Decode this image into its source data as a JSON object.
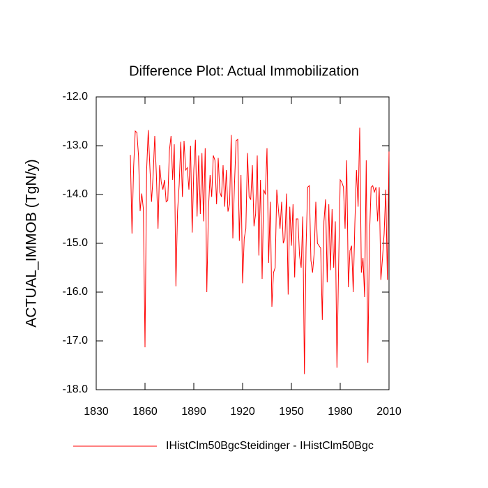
{
  "chart_data": {
    "type": "line",
    "title": "Difference Plot: Actual Immobilization",
    "y_label": "ACTUAL_IMMOB  (TgN/y)",
    "x": [
      1851,
      1852,
      1853,
      1854,
      1855,
      1856,
      1857,
      1858,
      1859,
      1860,
      1861,
      1862,
      1863,
      1864,
      1865,
      1866,
      1867,
      1868,
      1869,
      1870,
      1871,
      1872,
      1873,
      1874,
      1875,
      1876,
      1877,
      1878,
      1879,
      1880,
      1881,
      1882,
      1883,
      1884,
      1885,
      1886,
      1887,
      1888,
      1889,
      1890,
      1891,
      1892,
      1893,
      1894,
      1895,
      1896,
      1897,
      1898,
      1899,
      1900,
      1901,
      1902,
      1903,
      1904,
      1905,
      1906,
      1907,
      1908,
      1909,
      1910,
      1911,
      1912,
      1913,
      1914,
      1915,
      1916,
      1917,
      1918,
      1919,
      1920,
      1921,
      1922,
      1923,
      1924,
      1925,
      1926,
      1927,
      1928,
      1929,
      1930,
      1931,
      1932,
      1933,
      1934,
      1935,
      1936,
      1937,
      1938,
      1939,
      1940,
      1941,
      1942,
      1943,
      1944,
      1945,
      1946,
      1947,
      1948,
      1949,
      1950,
      1951,
      1952,
      1953,
      1954,
      1955,
      1956,
      1957,
      1958,
      1959,
      1960,
      1961,
      1962,
      1963,
      1964,
      1965,
      1966,
      1967,
      1968,
      1969,
      1970,
      1971,
      1972,
      1973,
      1974,
      1975,
      1976,
      1977,
      1978,
      1979,
      1980,
      1981,
      1982,
      1983,
      1984,
      1985,
      1986,
      1987,
      1988,
      1989,
      1990,
      1991,
      1992,
      1993,
      1994,
      1995,
      1996,
      1997,
      1998,
      1999,
      2000,
      2001,
      2002,
      2003,
      2004,
      2005,
      2006,
      2007,
      2008,
      2009,
      2010
    ],
    "series": [
      {
        "name": "IHistClm50BgcSteidinger - IHistClm50Bgc",
        "color": "#ff0000",
        "values": [
          -13.19,
          -14.8,
          -13.44,
          -12.7,
          -12.73,
          -13.2,
          -14.34,
          -13.98,
          -14.3,
          -17.13,
          -13.5,
          -12.68,
          -13.45,
          -14.15,
          -13.6,
          -12.8,
          -13.6,
          -14.7,
          -13.4,
          -13.75,
          -13.9,
          -13.7,
          -14.15,
          -14.12,
          -13.1,
          -12.8,
          -13.7,
          -12.97,
          -15.88,
          -14.35,
          -13.8,
          -12.92,
          -14.05,
          -12.9,
          -13.5,
          -13.45,
          -13.9,
          -13.0,
          -14.78,
          -13.5,
          -12.88,
          -14.45,
          -13.2,
          -14.4,
          -13.15,
          -14.55,
          -13.05,
          -16.0,
          -14.3,
          -13.6,
          -14.05,
          -13.2,
          -13.3,
          -14.2,
          -13.25,
          -13.95,
          -14.05,
          -13.4,
          -14.25,
          -13.5,
          -14.35,
          -14.2,
          -12.78,
          -14.9,
          -13.8,
          -12.9,
          -12.87,
          -14.95,
          -13.6,
          -15.82,
          -14.9,
          -14.7,
          -13.15,
          -14.05,
          -14.1,
          -13.4,
          -14.65,
          -14.4,
          -13.2,
          -15.25,
          -13.7,
          -15.73,
          -13.9,
          -14.0,
          -13.05,
          -15.4,
          -14.15,
          -16.3,
          -15.6,
          -15.5,
          -13.9,
          -14.3,
          -14.7,
          -14.15,
          -15.0,
          -14.9,
          -13.98,
          -16.05,
          -14.25,
          -15.05,
          -14.2,
          -15.7,
          -14.5,
          -14.5,
          -15.25,
          -15.5,
          -14.45,
          -17.68,
          -15.1,
          -13.85,
          -13.82,
          -15.35,
          -15.6,
          -15.2,
          -14.15,
          -15.0,
          -15.05,
          -15.1,
          -16.57,
          -14.55,
          -14.1,
          -15.8,
          -14.2,
          -15.55,
          -14.3,
          -15.5,
          -14.55,
          -17.55,
          -15.5,
          -13.7,
          -13.75,
          -13.85,
          -14.7,
          -13.3,
          -15.9,
          -15.15,
          -15.05,
          -16.0,
          -14.6,
          -13.5,
          -14.25,
          -12.63,
          -15.6,
          -15.3,
          -16.1,
          -13.3,
          -17.45,
          -14.85,
          -13.85,
          -13.82,
          -13.95,
          -13.85,
          -14.55,
          -13.85,
          -15.75,
          -15.3,
          -14.8,
          -13.9,
          -15.75,
          -13.12
        ]
      }
    ],
    "xlim": [
      1830,
      2010
    ],
    "xticks": [
      1830,
      1860,
      1890,
      1920,
      1950,
      1980,
      2010
    ],
    "ylim": [
      -18,
      -12
    ],
    "yticks": [
      {
        "value": -18,
        "label": "-18.0"
      },
      {
        "value": -17,
        "label": "-17.0"
      },
      {
        "value": -16,
        "label": "-16.0"
      },
      {
        "value": -15,
        "label": "-15.0"
      },
      {
        "value": -14,
        "label": "-14.0"
      },
      {
        "value": -13,
        "label": "-13.0"
      },
      {
        "value": -12,
        "label": "-12.0"
      }
    ]
  }
}
